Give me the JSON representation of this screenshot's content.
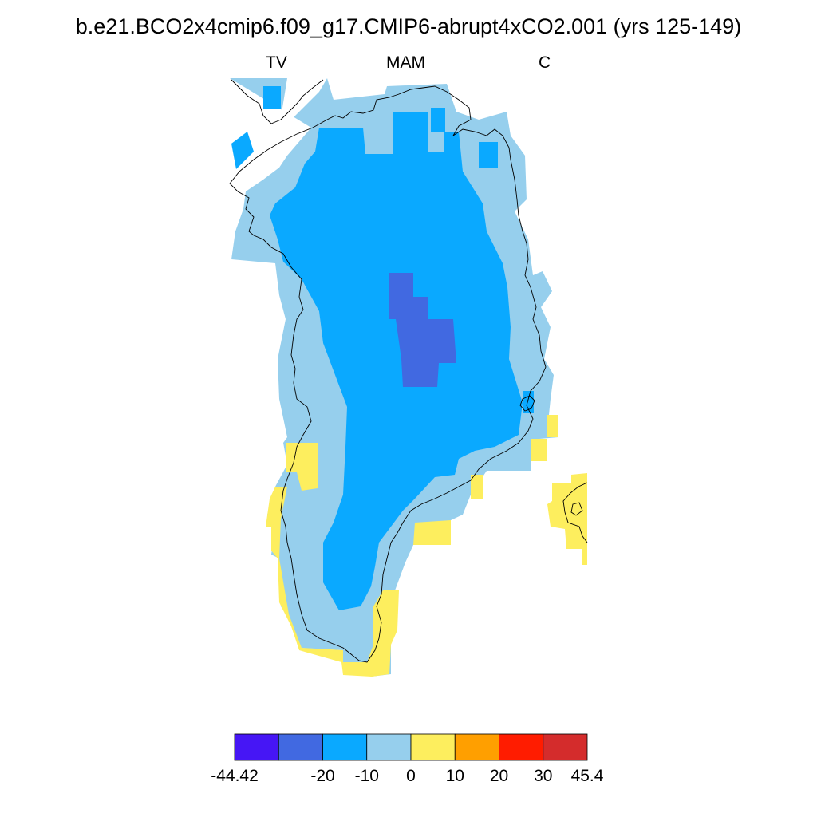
{
  "title": "b.e21.BCO2x4cmip6.f09_g17.CMIP6-abrupt4xCO2.001 (yrs 125-149)",
  "labels": {
    "left": "TV",
    "center": "MAM",
    "right": "C"
  },
  "colors": {
    "c1": "#4616f5",
    "c2": "#4169e1",
    "c3": "#0aa9ff",
    "c4": "#96cfed",
    "c5": "#fdee5e",
    "c6": "#ff9f00",
    "c7": "#ff1c00",
    "c8": "#d42c2c",
    "coast": "#000000"
  },
  "colorbar": {
    "ticks": [
      "-44.42",
      "-20",
      "-10",
      "0",
      "10",
      "20",
      "30",
      "45.4"
    ],
    "bins": [
      "c1",
      "c2",
      "c3",
      "c4",
      "c5",
      "c6",
      "c7",
      "c8"
    ]
  }
}
